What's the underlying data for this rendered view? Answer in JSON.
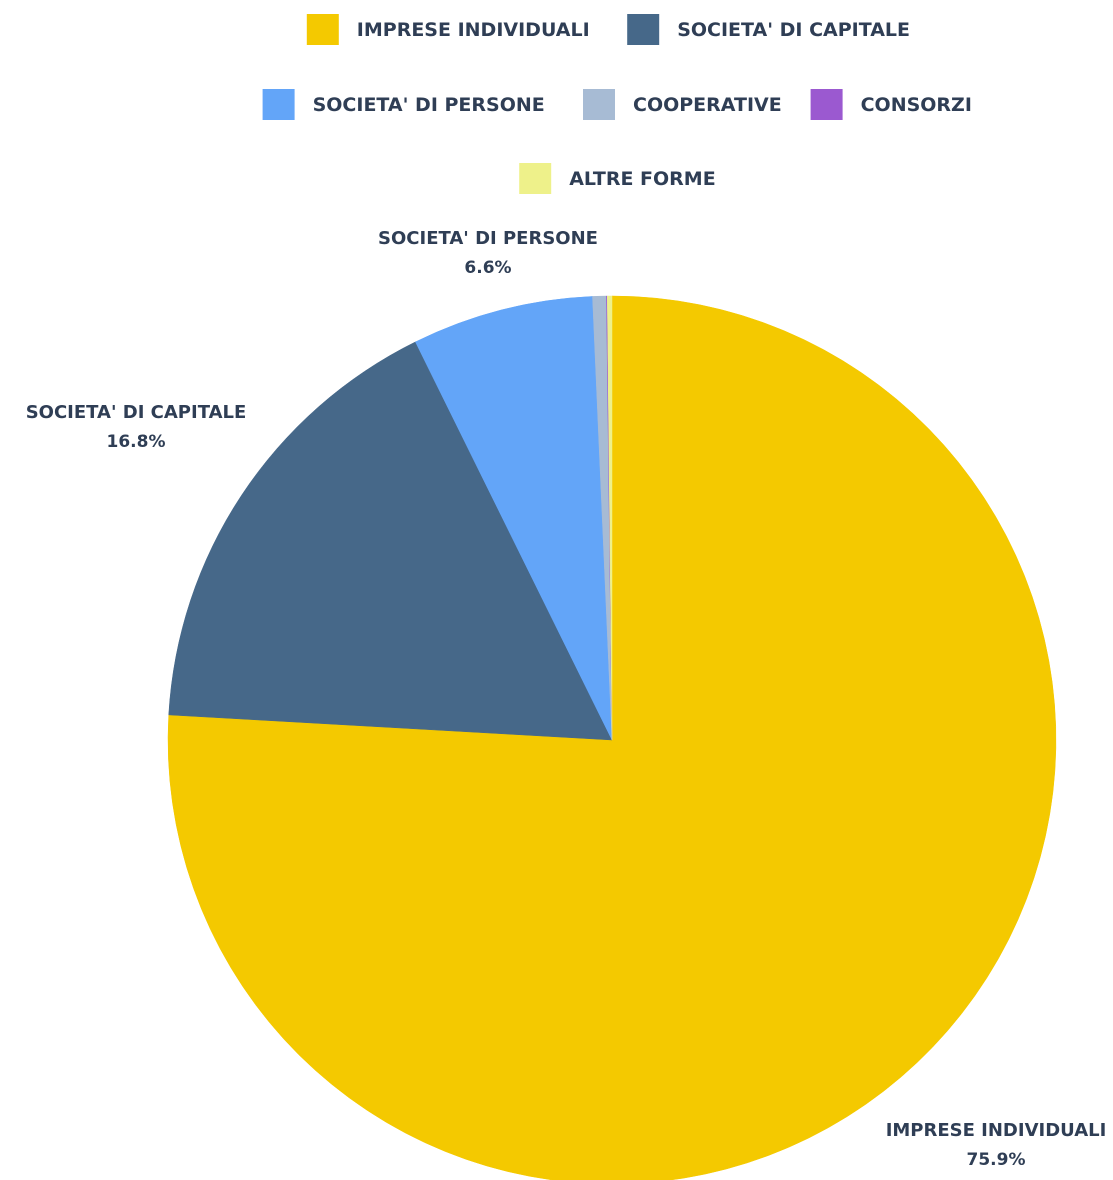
{
  "chart_data": {
    "type": "pie",
    "categories": [
      "Imprese individuali",
      "Societa' di capitale",
      "Societa' di persone",
      "Cooperative",
      "Consorzi",
      "Altre forme"
    ],
    "values": [
      75.9,
      16.8,
      6.6,
      0.5,
      0.03,
      0.17
    ],
    "colors": [
      "#f4c900",
      "#466889",
      "#63a5f8",
      "#a7bbd4",
      "#9b59d0",
      "#eef18a"
    ],
    "data_labels": [
      {
        "name": "Imprese individuali",
        "pct": "75.9%"
      },
      {
        "name": "Societa' di capitale",
        "pct": "16.8%"
      },
      {
        "name": "Societa' di persone",
        "pct": "6.6%"
      }
    ],
    "legend_position": "top"
  }
}
